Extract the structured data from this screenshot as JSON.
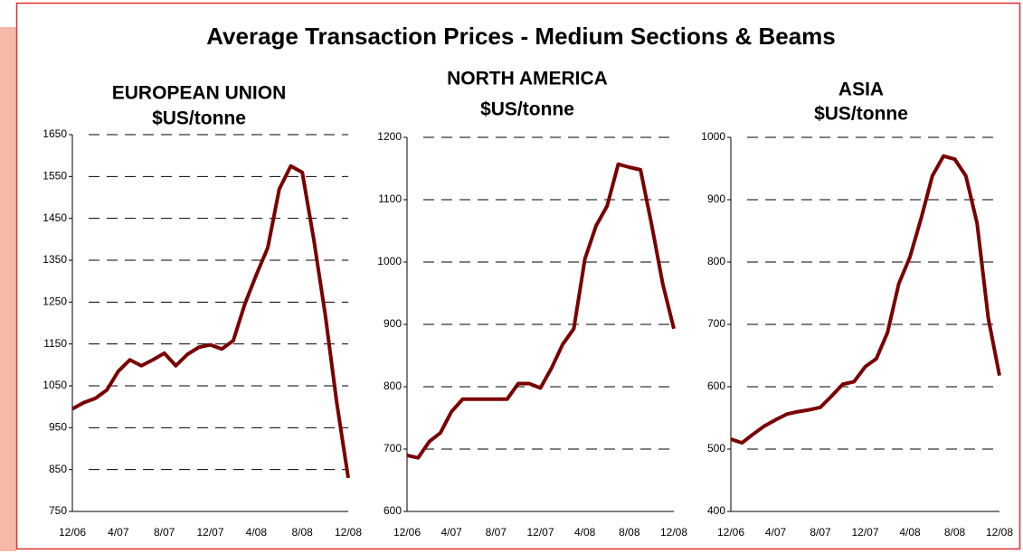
{
  "title": "Average Transaction Prices - Medium Sections & Beams",
  "chart_data": [
    {
      "type": "line",
      "title": "EUROPEAN UNION",
      "subtitle": "$US/tonne",
      "categories": [
        "12/06",
        null,
        null,
        null,
        "4/07",
        null,
        null,
        null,
        "8/07",
        null,
        null,
        null,
        "12/07",
        null,
        null,
        null,
        "4/08",
        null,
        null,
        null,
        "8/08",
        null,
        null,
        null,
        "12/08"
      ],
      "series": [
        {
          "name": "European Union",
          "color": "#7a0000",
          "values": [
            995,
            1010,
            1020,
            1040,
            1085,
            1112,
            1098,
            1112,
            1128,
            1098,
            1125,
            1142,
            1148,
            1138,
            1158,
            1245,
            1315,
            1380,
            1520,
            1575,
            1560,
            1400,
            1220,
            1010,
            830
          ]
        }
      ],
      "ylim": [
        750,
        1650
      ],
      "yticks": [
        750,
        850,
        950,
        1050,
        1150,
        1250,
        1350,
        1450,
        1550,
        1650
      ],
      "grid": true
    },
    {
      "type": "line",
      "title": "NORTH AMERICA",
      "subtitle": "$US/tonne",
      "categories": [
        "12/06",
        null,
        null,
        null,
        "4/07",
        null,
        null,
        null,
        "8/07",
        null,
        null,
        null,
        "12/07",
        null,
        null,
        null,
        "4/08",
        null,
        null,
        null,
        "8/08",
        null,
        null,
        null,
        "12/08"
      ],
      "series": [
        {
          "name": "North America",
          "color": "#7a0000",
          "values": [
            690,
            686,
            712,
            726,
            760,
            780,
            780,
            780,
            780,
            780,
            805,
            805,
            798,
            830,
            868,
            893,
            1005,
            1058,
            1090,
            1157,
            1152,
            1148,
            1060,
            965,
            893
          ]
        }
      ],
      "ylim": [
        600,
        1200
      ],
      "yticks": [
        600,
        700,
        800,
        900,
        1000,
        1100,
        1200
      ],
      "grid": true
    },
    {
      "type": "line",
      "title": "ASIA",
      "subtitle": "$US/tonne",
      "categories": [
        "12/06",
        null,
        null,
        null,
        "4/07",
        null,
        null,
        null,
        "8/07",
        null,
        null,
        null,
        "12/07",
        null,
        null,
        null,
        "4/08",
        null,
        null,
        null,
        "8/08",
        null,
        null,
        null,
        "12/08"
      ],
      "series": [
        {
          "name": "Asia",
          "color": "#7a0000",
          "values": [
            516,
            510,
            524,
            537,
            547,
            556,
            560,
            563,
            567,
            585,
            604,
            608,
            632,
            645,
            687,
            765,
            808,
            870,
            938,
            970,
            965,
            938,
            862,
            710,
            618
          ]
        }
      ],
      "ylim": [
        400,
        1000
      ],
      "yticks": [
        400,
        500,
        600,
        700,
        800,
        900,
        1000
      ],
      "grid": true
    }
  ]
}
